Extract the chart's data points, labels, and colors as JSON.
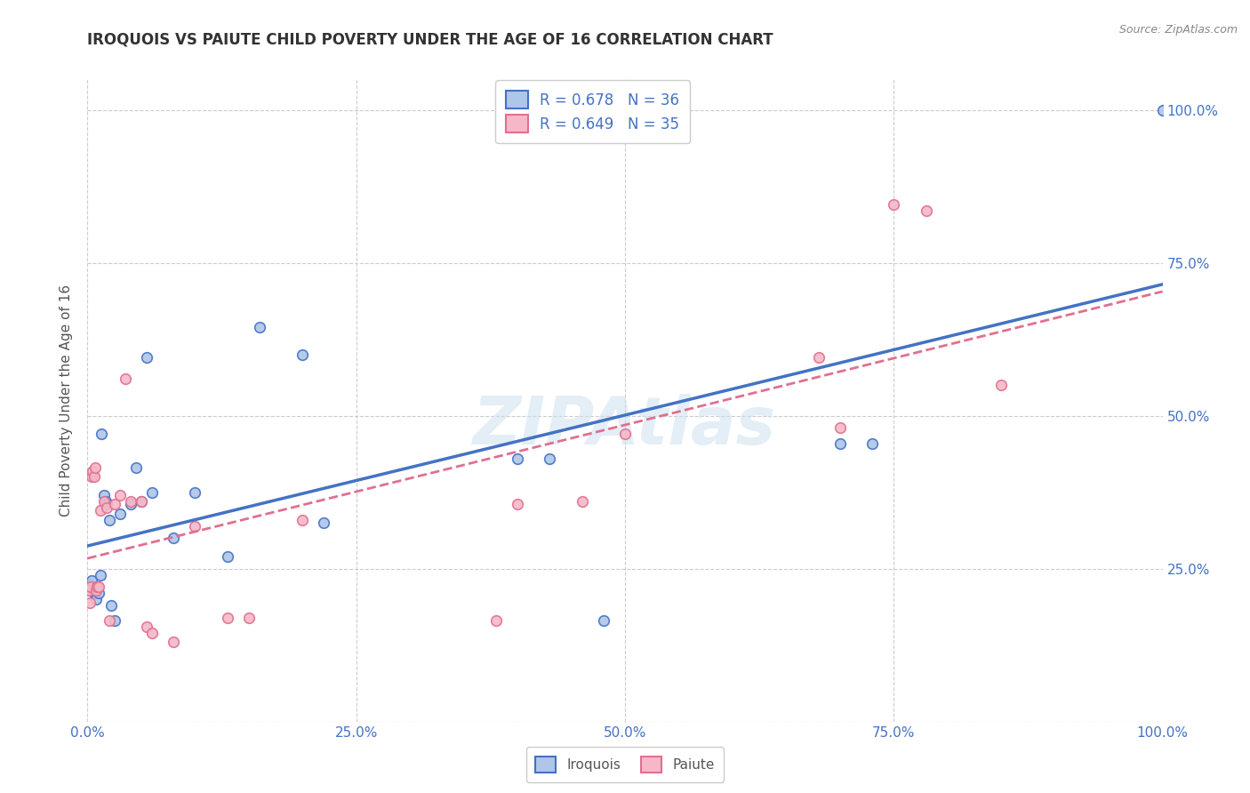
{
  "title": "IROQUOIS VS PAIUTE CHILD POVERTY UNDER THE AGE OF 16 CORRELATION CHART",
  "source": "Source: ZipAtlas.com",
  "ylabel": "Child Poverty Under the Age of 16",
  "watermark": "ZIPAtlas",
  "legend_iroquois": "Iroquois",
  "legend_paiute": "Paiute",
  "iroquois_R": "R = 0.678",
  "iroquois_N": "N = 36",
  "paiute_R": "R = 0.649",
  "paiute_N": "N = 35",
  "iroquois_color": "#aec6e8",
  "paiute_color": "#f5b8c8",
  "iroquois_line_color": "#4472c4",
  "paiute_line_color": "#e07090",
  "iroquois_x": [
    0.001,
    0.002,
    0.003,
    0.004,
    0.005,
    0.006,
    0.007,
    0.008,
    0.009,
    0.01,
    0.012,
    0.013,
    0.015,
    0.017,
    0.018,
    0.02,
    0.022,
    0.025,
    0.03,
    0.04,
    0.045,
    0.05,
    0.055,
    0.06,
    0.08,
    0.1,
    0.13,
    0.16,
    0.2,
    0.22,
    0.4,
    0.43,
    0.48,
    0.7,
    0.73,
    1.0
  ],
  "iroquois_y": [
    0.225,
    0.22,
    0.215,
    0.23,
    0.215,
    0.21,
    0.21,
    0.2,
    0.22,
    0.21,
    0.24,
    0.47,
    0.37,
    0.36,
    0.355,
    0.33,
    0.19,
    0.165,
    0.34,
    0.355,
    0.415,
    0.36,
    0.595,
    0.375,
    0.3,
    0.375,
    0.27,
    0.645,
    0.6,
    0.325,
    0.43,
    0.43,
    0.165,
    0.455,
    0.455,
    1.0
  ],
  "paiute_x": [
    0.001,
    0.002,
    0.003,
    0.004,
    0.005,
    0.006,
    0.007,
    0.008,
    0.009,
    0.01,
    0.012,
    0.015,
    0.018,
    0.02,
    0.025,
    0.03,
    0.035,
    0.04,
    0.05,
    0.055,
    0.06,
    0.08,
    0.1,
    0.13,
    0.15,
    0.2,
    0.38,
    0.4,
    0.46,
    0.5,
    0.68,
    0.7,
    0.75,
    0.78,
    0.85
  ],
  "paiute_y": [
    0.215,
    0.195,
    0.22,
    0.4,
    0.41,
    0.4,
    0.415,
    0.215,
    0.22,
    0.22,
    0.345,
    0.36,
    0.35,
    0.165,
    0.355,
    0.37,
    0.56,
    0.36,
    0.36,
    0.155,
    0.145,
    0.13,
    0.32,
    0.17,
    0.17,
    0.33,
    0.165,
    0.355,
    0.36,
    0.47,
    0.595,
    0.48,
    0.845,
    0.835,
    0.55
  ],
  "xlim": [
    0.0,
    1.0
  ],
  "ylim": [
    0.0,
    1.05
  ],
  "xticks": [
    0.0,
    0.25,
    0.5,
    0.75,
    1.0
  ],
  "xticklabels": [
    "0.0%",
    "25.0%",
    "50.0%",
    "75.0%",
    "100.0%"
  ],
  "yticks": [
    0.0,
    0.25,
    0.5,
    0.75,
    1.0
  ],
  "yticklabels_right": [
    "",
    "25.0%",
    "50.0%",
    "75.0%",
    "100.0%"
  ],
  "background_color": "#ffffff",
  "grid_color": "#cccccc",
  "title_fontsize": 12,
  "label_fontsize": 11,
  "tick_fontsize": 11,
  "marker_size": 70,
  "marker_linewidth": 1.2
}
